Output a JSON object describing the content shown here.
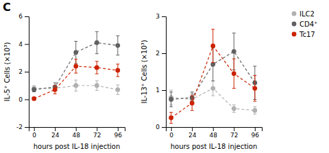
{
  "chart_data": [
    {
      "type": "line",
      "title": "C",
      "xlabel": "hours post IL-18 injection",
      "ylabel": "IL-5⁺ Cells (×10³)",
      "x": [
        0,
        24,
        48,
        72,
        96
      ],
      "xlim": [
        -6,
        104
      ],
      "xticks": [
        0,
        24,
        48,
        72,
        96
      ],
      "ylim": [
        -2,
        6
      ],
      "yticks": [
        -2,
        0,
        2,
        4,
        6
      ],
      "series": [
        {
          "name": "ILC2",
          "color": "#B0B0B0",
          "line_style": "dashed",
          "marker": "circle",
          "values": [
            0.8,
            0.8,
            1.0,
            1.0,
            0.7
          ],
          "errors": [
            0.2,
            0.2,
            0.4,
            0.35,
            0.35
          ]
        },
        {
          "name": "CD4⁺",
          "color": "#606060",
          "line_style": "dashed",
          "marker": "circle",
          "values": [
            0.7,
            0.9,
            3.4,
            4.1,
            3.9
          ],
          "errors": [
            0.15,
            0.3,
            0.8,
            0.8,
            0.7
          ]
        },
        {
          "name": "Tc17",
          "color": "#CC2200",
          "line_style": "dashed",
          "marker": "circle",
          "values": [
            0.05,
            0.7,
            2.4,
            2.3,
            2.1
          ],
          "errors": [
            0.1,
            0.3,
            0.5,
            0.45,
            0.45
          ]
        }
      ]
    },
    {
      "type": "line",
      "xlabel": "hours post IL-18 injection",
      "ylabel": "IL-13⁺ Cells (×10³)",
      "x": [
        0,
        24,
        48,
        72,
        96
      ],
      "xlim": [
        -6,
        104
      ],
      "xticks": [
        0,
        24,
        48,
        72,
        96
      ],
      "ylim": [
        0,
        3
      ],
      "yticks": [
        0,
        1,
        2,
        3
      ],
      "legend": "upper right",
      "series": [
        {
          "name": "ILC2",
          "color": "#B0B0B0",
          "line_style": "dashed",
          "marker": "circle",
          "values": [
            0.8,
            0.75,
            1.05,
            0.5,
            0.45
          ],
          "errors": [
            0.2,
            0.15,
            0.2,
            0.1,
            0.1
          ]
        },
        {
          "name": "CD4⁺",
          "color": "#606060",
          "line_style": "dashed",
          "marker": "circle",
          "values": [
            0.75,
            0.8,
            1.7,
            2.05,
            1.2
          ],
          "errors": [
            0.2,
            0.15,
            0.45,
            0.5,
            0.45
          ]
        },
        {
          "name": "Tc17",
          "color": "#CC2200",
          "line_style": "dashed",
          "marker": "circle",
          "values": [
            0.25,
            0.65,
            2.2,
            1.45,
            1.05
          ],
          "errors": [
            0.15,
            0.2,
            0.45,
            0.4,
            0.35
          ]
        }
      ]
    }
  ]
}
